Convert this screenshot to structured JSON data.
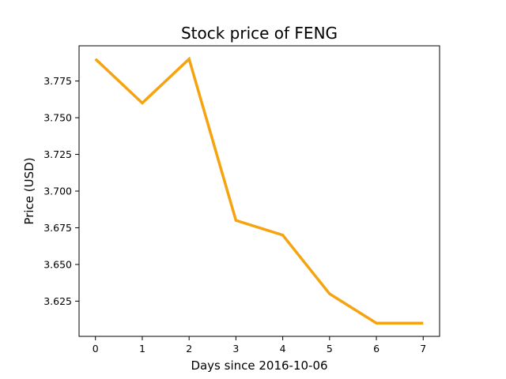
{
  "chart_data": {
    "type": "line",
    "title": "Stock price of FENG",
    "xlabel": "Days since 2016-10-06",
    "ylabel": "Price (USD)",
    "x": [
      0,
      1,
      2,
      3,
      4,
      5,
      6,
      7
    ],
    "xticks": [
      "0",
      "1",
      "2",
      "3",
      "4",
      "5",
      "6",
      "7"
    ],
    "yticks": [
      "3.625",
      "3.650",
      "3.675",
      "3.700",
      "3.725",
      "3.750",
      "3.775"
    ],
    "xlim": [
      -0.35,
      7.35
    ],
    "ylim": [
      3.601,
      3.799
    ],
    "grid": false,
    "series": [
      {
        "color": "#f5a30f",
        "values": [
          3.79,
          3.76,
          3.79,
          3.68,
          3.67,
          3.63,
          3.61,
          3.61
        ]
      }
    ]
  }
}
